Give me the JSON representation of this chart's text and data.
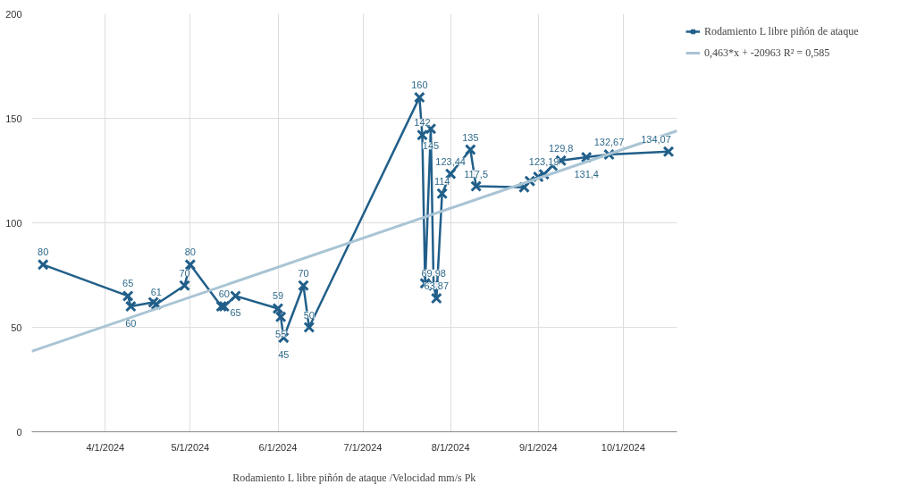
{
  "chart_data": {
    "type": "line",
    "xlabel": "Rodamiento L libre piñón de ataque /Velocidad mm/s Pk",
    "xlim": [
      "2024-03-06",
      "2024-10-20"
    ],
    "xticks": [
      {
        "value": "2024-04-01",
        "label": "4/1/2024"
      },
      {
        "value": "2024-05-01",
        "label": "5/1/2024"
      },
      {
        "value": "2024-06-01",
        "label": "6/1/2024"
      },
      {
        "value": "2024-07-01",
        "label": "7/1/2024"
      },
      {
        "value": "2024-08-01",
        "label": "8/1/2024"
      },
      {
        "value": "2024-09-01",
        "label": "9/1/2024"
      },
      {
        "value": "2024-10-01",
        "label": "10/1/2024"
      }
    ],
    "ylim": [
      0,
      200
    ],
    "yticks": [
      0,
      50,
      100,
      150,
      200
    ],
    "grid": true,
    "legend": "top right",
    "marker": "cross",
    "line_style": "solid",
    "series": [
      {
        "name": "Rodamiento L libre piñón de ataque",
        "color": "#215f8a",
        "x": [
          "2024-03-10",
          "2024-04-09",
          "2024-04-10",
          "2024-04-18",
          "2024-04-19",
          "2024-04-29",
          "2024-05-01",
          "2024-05-12",
          "2024-05-13",
          "2024-05-17",
          "2024-06-01",
          "2024-06-02",
          "2024-06-03",
          "2024-06-10",
          "2024-06-12",
          "2024-07-21",
          "2024-07-22",
          "2024-07-23",
          "2024-07-25",
          "2024-07-26",
          "2024-07-27",
          "2024-07-29",
          "2024-08-01",
          "2024-08-08",
          "2024-08-10",
          "2024-08-27",
          "2024-08-29",
          "2024-09-01",
          "2024-09-03",
          "2024-09-06",
          "2024-09-09",
          "2024-09-18",
          "2024-09-26",
          "2024-10-17"
        ],
        "values": [
          80,
          65,
          60,
          62,
          61,
          70,
          80,
          60,
          60,
          65,
          59,
          55,
          45,
          70,
          50,
          160,
          142,
          71,
          145,
          69.98,
          63.87,
          114,
          123.44,
          135,
          117.5,
          117,
          120,
          122,
          123.19,
          127.35,
          129.8,
          131.4,
          132.67,
          134.07
        ],
        "value_labels": [
          "80",
          "65",
          "60",
          null,
          "61",
          "70",
          "80",
          null,
          "60",
          "65",
          "59",
          "55",
          "45",
          "70",
          "50",
          "160",
          "142",
          null,
          "145",
          "69,98",
          "63,87",
          "114",
          "123,44",
          "135",
          "117,5",
          null,
          null,
          null,
          "123,19",
          null,
          "129,8",
          "131,4",
          "132,67",
          "134,07"
        ]
      },
      {
        "name": "0,463*x + -20963 R² = 0,585",
        "color": "#a9c4d4",
        "marker": "none",
        "x": [
          "2024-03-06",
          "2024-10-20"
        ],
        "values": [
          38.5,
          144
        ]
      }
    ]
  }
}
